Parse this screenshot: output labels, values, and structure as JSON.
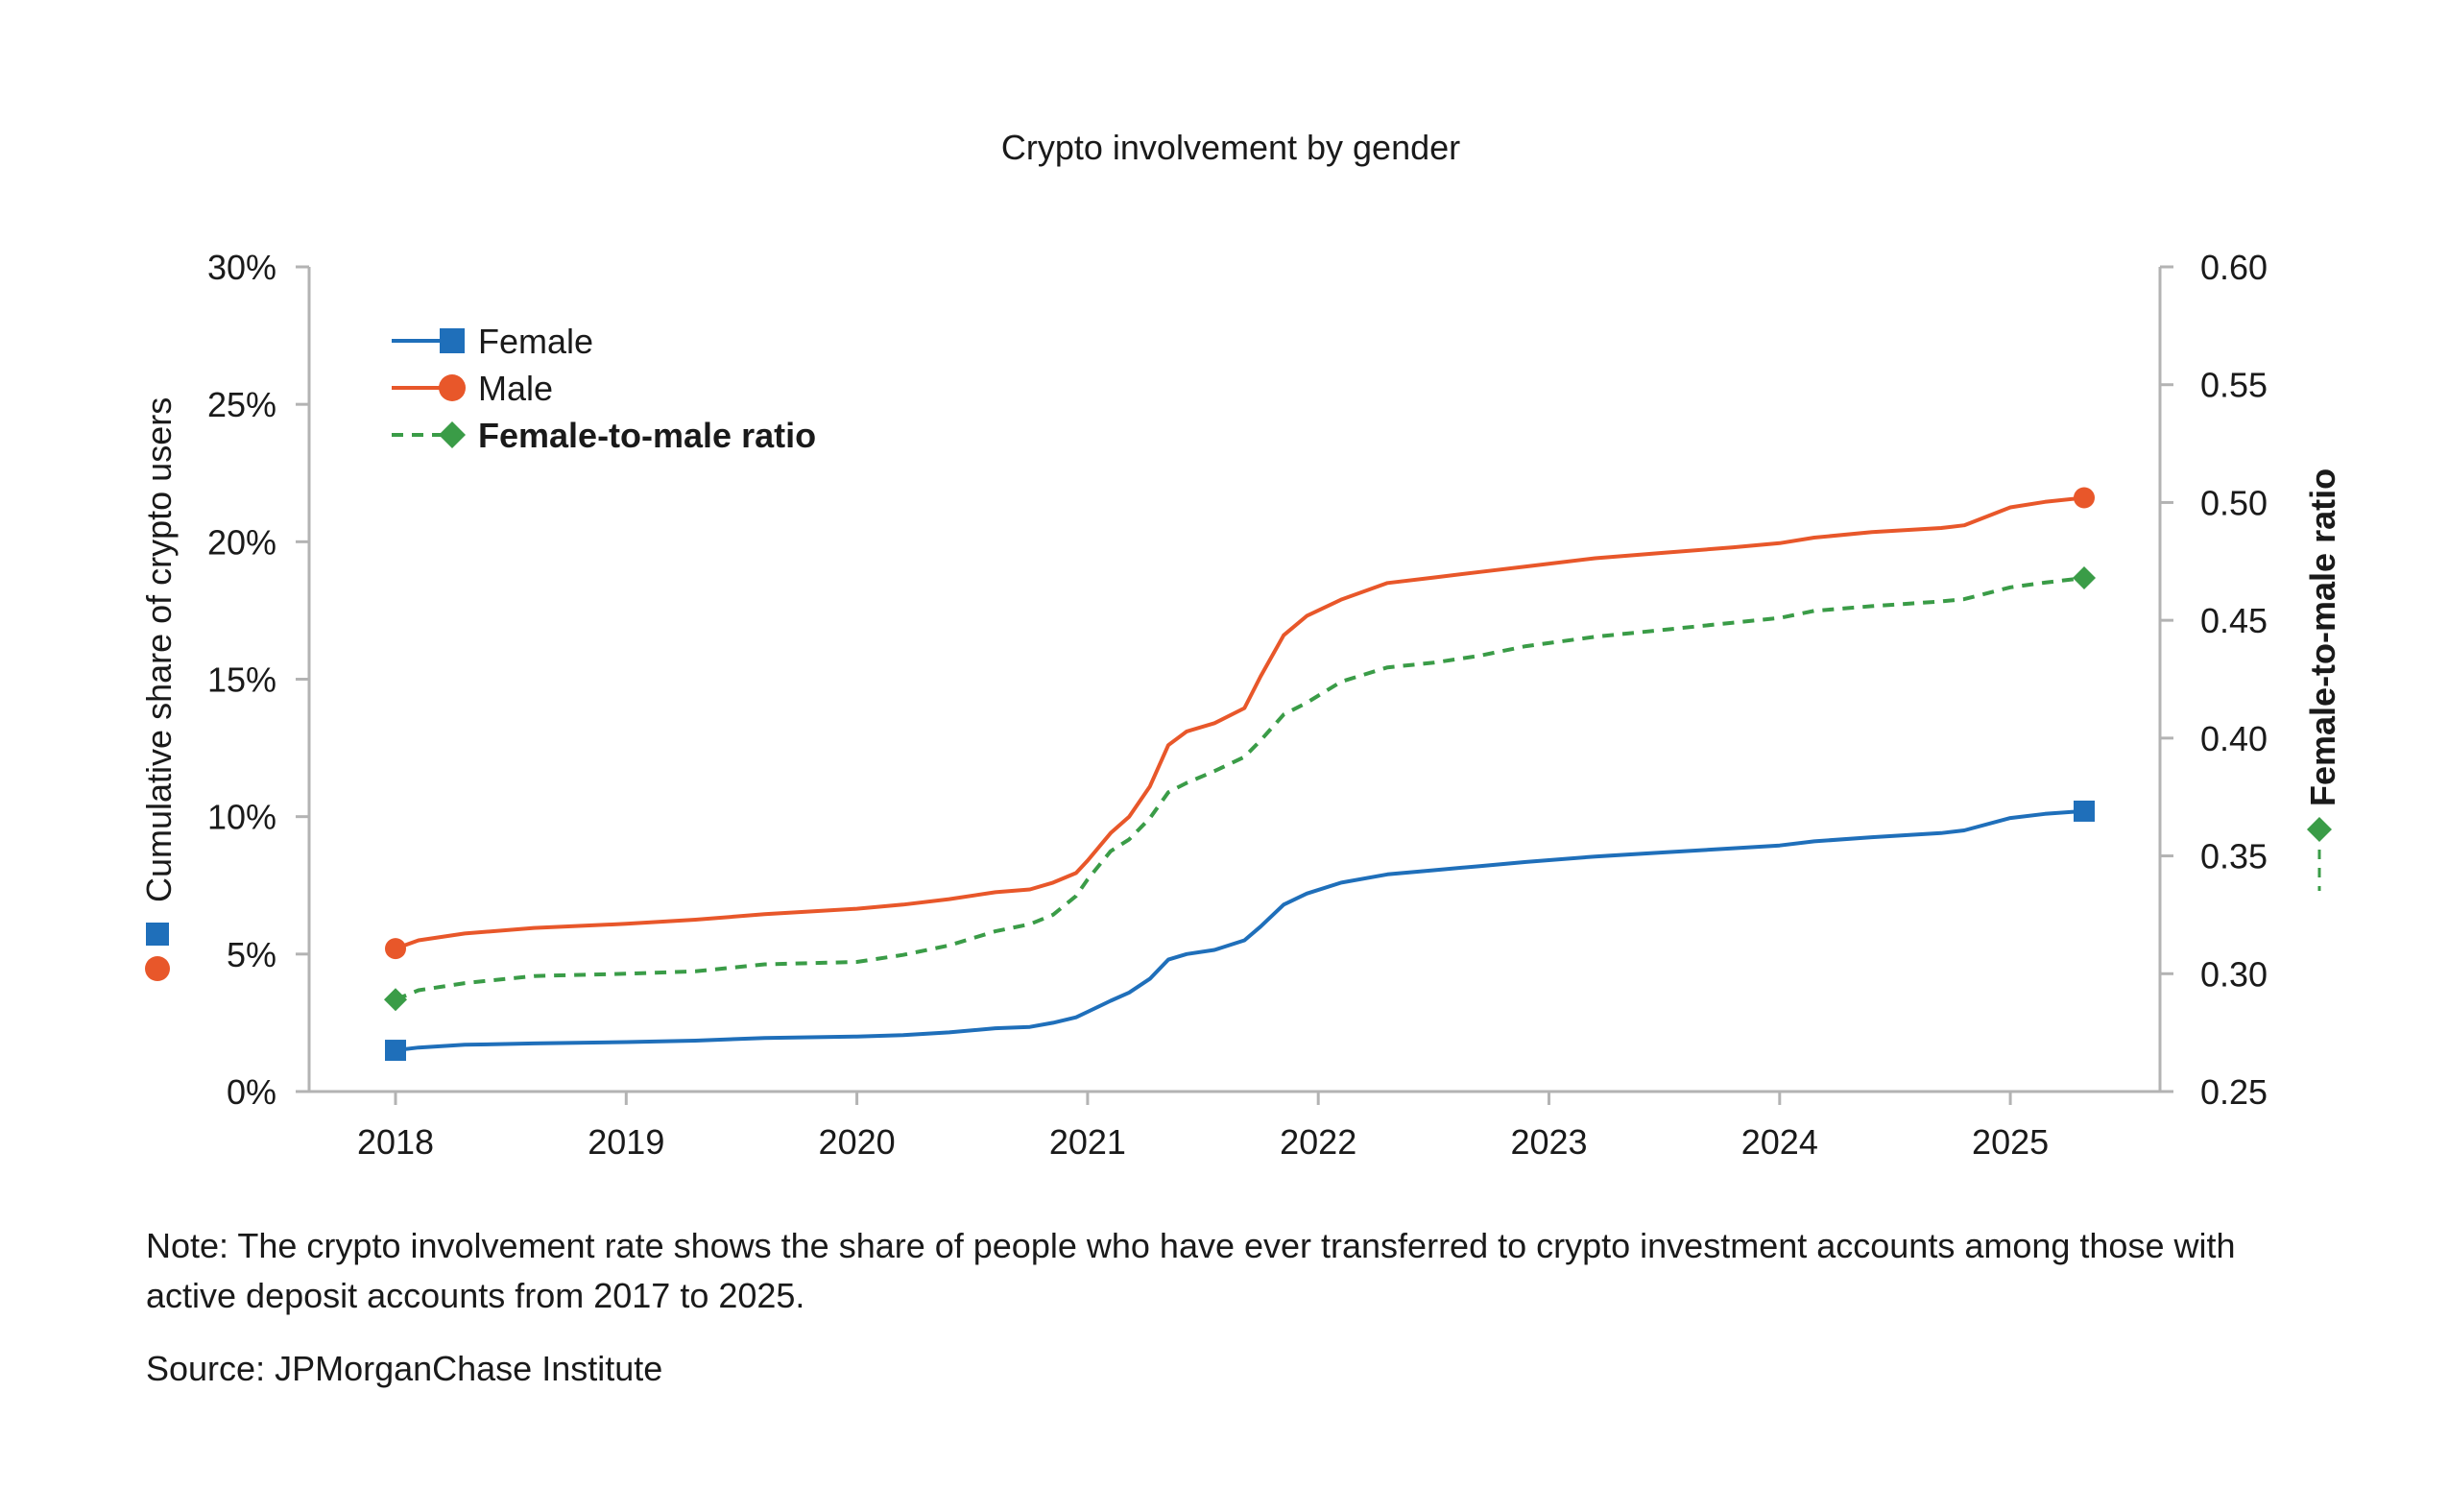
{
  "chart_data": {
    "type": "line",
    "title": "Crypto involvement by gender",
    "ylabel_left": "Cumulative share of crypto users",
    "ylabel_right": "Female-to-male ratio",
    "xlabel": "",
    "x_ticks": [
      "2018",
      "2019",
      "2020",
      "2021",
      "2022",
      "2023",
      "2024",
      "2025"
    ],
    "y_left_ticks": [
      "0%",
      "5%",
      "10%",
      "15%",
      "20%",
      "25%",
      "30%"
    ],
    "y_right_ticks": [
      "0.25",
      "0.30",
      "0.35",
      "0.40",
      "0.45",
      "0.50",
      "0.55",
      "0.60"
    ],
    "ylim_left": [
      0,
      30
    ],
    "ylim_right": [
      0.25,
      0.6
    ],
    "xlim": [
      2017.65,
      2025.7
    ],
    "grid": false,
    "legend_position": "top-left",
    "x": [
      2018.0,
      2018.1,
      2018.3,
      2018.6,
      2019.0,
      2019.3,
      2019.6,
      2020.0,
      2020.2,
      2020.4,
      2020.6,
      2020.75,
      2020.85,
      2020.95,
      2021.0,
      2021.1,
      2021.18,
      2021.27,
      2021.35,
      2021.43,
      2021.55,
      2021.68,
      2021.75,
      2021.85,
      2021.95,
      2022.1,
      2022.3,
      2022.5,
      2022.7,
      2022.9,
      2023.2,
      2023.5,
      2023.8,
      2024.0,
      2024.15,
      2024.4,
      2024.7,
      2024.8,
      2025.0,
      2025.15,
      2025.32
    ],
    "series": [
      {
        "name": "Female",
        "axis": "left",
        "color": "#1f6fba",
        "marker": "square",
        "values": [
          1.5,
          1.6,
          1.7,
          1.75,
          1.8,
          1.85,
          1.95,
          2.0,
          2.05,
          2.15,
          2.3,
          2.35,
          2.5,
          2.7,
          2.9,
          3.3,
          3.6,
          4.1,
          4.8,
          5.0,
          5.15,
          5.5,
          6.0,
          6.8,
          7.2,
          7.6,
          7.9,
          8.05,
          8.2,
          8.35,
          8.55,
          8.7,
          8.85,
          8.95,
          9.1,
          9.25,
          9.4,
          9.5,
          9.95,
          10.1,
          10.2
        ]
      },
      {
        "name": "Male",
        "axis": "left",
        "color": "#e8572a",
        "marker": "circle",
        "values": [
          5.2,
          5.5,
          5.75,
          5.95,
          6.1,
          6.25,
          6.45,
          6.65,
          6.8,
          7.0,
          7.25,
          7.35,
          7.6,
          7.95,
          8.4,
          9.4,
          10.0,
          11.1,
          12.6,
          13.1,
          13.4,
          13.95,
          15.1,
          16.6,
          17.3,
          17.9,
          18.5,
          18.7,
          18.9,
          19.1,
          19.4,
          19.6,
          19.8,
          19.95,
          20.15,
          20.35,
          20.5,
          20.6,
          21.25,
          21.45,
          21.6
        ]
      },
      {
        "name": "Female-to-male ratio",
        "axis": "right",
        "color": "#3a9c47",
        "marker": "diamond",
        "dashed": true,
        "values": [
          0.289,
          0.293,
          0.296,
          0.299,
          0.3,
          0.301,
          0.304,
          0.305,
          0.308,
          0.312,
          0.318,
          0.321,
          0.325,
          0.333,
          0.34,
          0.352,
          0.357,
          0.366,
          0.377,
          0.381,
          0.386,
          0.392,
          0.399,
          0.41,
          0.415,
          0.424,
          0.43,
          0.432,
          0.435,
          0.439,
          0.443,
          0.446,
          0.449,
          0.451,
          0.454,
          0.456,
          0.458,
          0.459,
          0.464,
          0.466,
          0.468
        ]
      }
    ]
  },
  "note": "Note: The crypto involvement rate shows the share of people who have ever transferred to crypto investment accounts among those with active deposit accounts from 2017 to  2025.",
  "source": "Source: JPMorganChase Institute",
  "colors": {
    "axis": "#b3b3b3",
    "text": "#1a1a1a",
    "female": "#1f6fba",
    "male": "#e8572a",
    "ratio": "#3a9c47"
  }
}
